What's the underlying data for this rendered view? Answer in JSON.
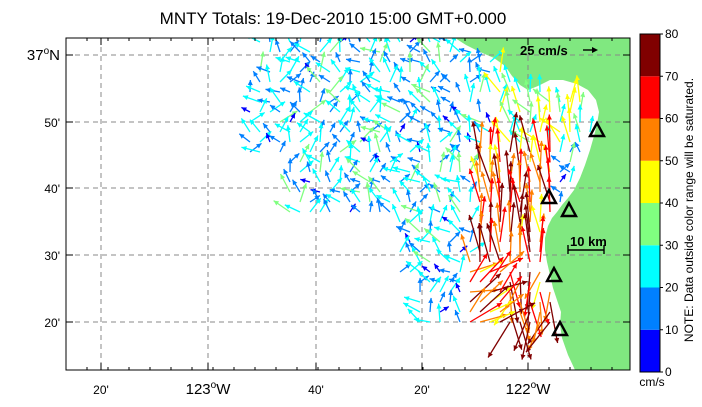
{
  "title": "MNTY Totals: 19-Dec-2010 15:00 GMT+0.000",
  "axes": {
    "x_ticks": [
      {
        "label": "20'",
        "deg_sup": "",
        "suffix": "",
        "big": false
      },
      {
        "label": "123",
        "deg_sup": "o",
        "suffix": "W",
        "big": true
      },
      {
        "label": "40'",
        "deg_sup": "",
        "suffix": "",
        "big": false
      },
      {
        "label": "20'",
        "deg_sup": "",
        "suffix": "",
        "big": false
      },
      {
        "label": "122",
        "deg_sup": "o",
        "suffix": "W",
        "big": true
      }
    ],
    "y_ticks": [
      {
        "label": "37",
        "deg_sup": "o",
        "suffix": "N",
        "big": true
      },
      {
        "label": "50'",
        "deg_sup": "",
        "suffix": "",
        "big": false
      },
      {
        "label": "40'",
        "deg_sup": "",
        "suffix": "",
        "big": false
      },
      {
        "label": "30'",
        "deg_sup": "",
        "suffix": "",
        "big": false
      },
      {
        "label": "20'",
        "deg_sup": "",
        "suffix": "",
        "big": false
      }
    ]
  },
  "reference_vector": {
    "label": "25 cm/s",
    "speed_cms": 25
  },
  "scale_bar": {
    "label": "10 km"
  },
  "stations": [
    {
      "id": "station-1"
    },
    {
      "id": "station-2"
    },
    {
      "id": "station-3"
    },
    {
      "id": "station-4"
    },
    {
      "id": "station-5"
    }
  ],
  "colorbar": {
    "ticks": [
      "0",
      "10",
      "20",
      "30",
      "40",
      "50",
      "60",
      "70",
      "80"
    ],
    "unit": "cm/s",
    "note": "NOTE: Data outside color range will be saturated.",
    "colors": [
      "#0000ff",
      "#0080ff",
      "#00ffff",
      "#80ff80",
      "#ffff00",
      "#ff8000",
      "#ff0000",
      "#800000"
    ]
  },
  "land_color": "#80e880",
  "marker_icon": "triangle-icon"
}
